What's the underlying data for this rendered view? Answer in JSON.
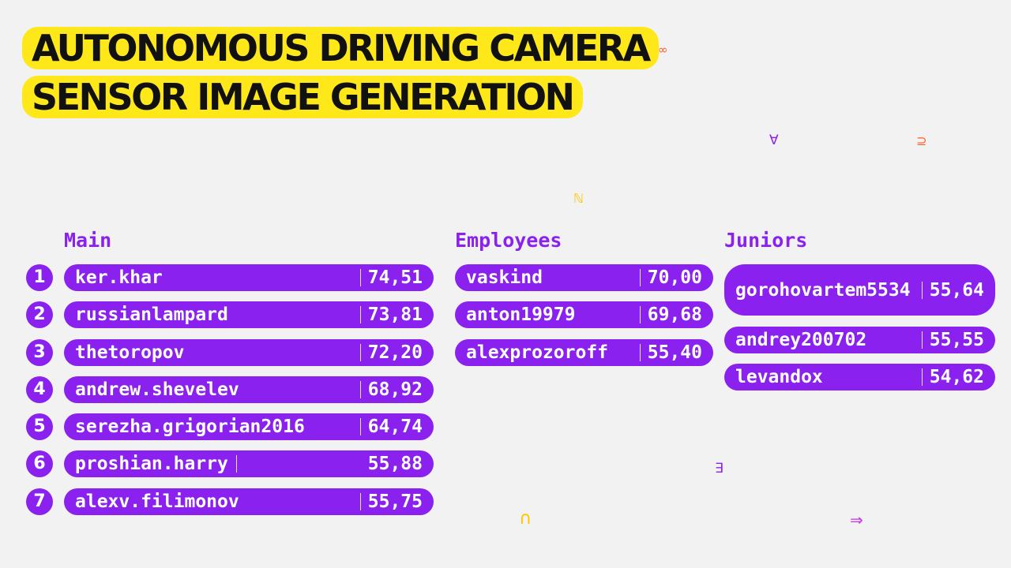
{
  "title": {
    "line1": "AUTONOMOUS DRIVING CAMERA",
    "line2": "SENSOR IMAGE GENERATION"
  },
  "decor": [
    {
      "glyph": "∞",
      "color": "#ff5a1f",
      "name": "infinity-symbol"
    },
    {
      "glyph": "∀",
      "color": "#8a21ef",
      "name": "for-all-symbol"
    },
    {
      "glyph": "⊇",
      "color": "#ff5a1f",
      "name": "superset-symbol"
    },
    {
      "glyph": "ℕ",
      "color": "#ffc400",
      "name": "naturals-symbol"
    },
    {
      "glyph": "∃",
      "color": "#8a21ef",
      "name": "exists-symbol"
    },
    {
      "glyph": "∩",
      "color": "#ffc400",
      "name": "intersection-symbol"
    },
    {
      "glyph": "⇒",
      "color": "#c733e8",
      "name": "implies-symbol"
    }
  ],
  "main": {
    "title": "Main",
    "rows": [
      {
        "rank": "1",
        "name": "ker.khar",
        "score": "74,51"
      },
      {
        "rank": "2",
        "name": "russianlampard",
        "score": "73,81"
      },
      {
        "rank": "3",
        "name": "thetoropov",
        "score": "72,20"
      },
      {
        "rank": "4",
        "name": "andrew.shevelev",
        "score": "68,92"
      },
      {
        "rank": "5",
        "name": "serezha.grigorian2016",
        "score": "64,74"
      },
      {
        "rank": "6",
        "name": "proshian.harry",
        "score": "55,88"
      },
      {
        "rank": "7",
        "name": "alexv.filimonov",
        "score": "55,75"
      }
    ]
  },
  "employees": {
    "title": "Employees",
    "rows": [
      {
        "name": "vaskind",
        "score": "70,00"
      },
      {
        "name": "anton19979",
        "score": "69,68"
      },
      {
        "name": "alexprozoroff",
        "score": "55,40"
      }
    ]
  },
  "juniors": {
    "title": "Juniors",
    "rows": [
      {
        "name": "gorohovartem5534",
        "score": "55,64"
      },
      {
        "name": "andrey200702",
        "score": "55,55"
      },
      {
        "name": "levandox",
        "score": "54,62"
      }
    ]
  }
}
